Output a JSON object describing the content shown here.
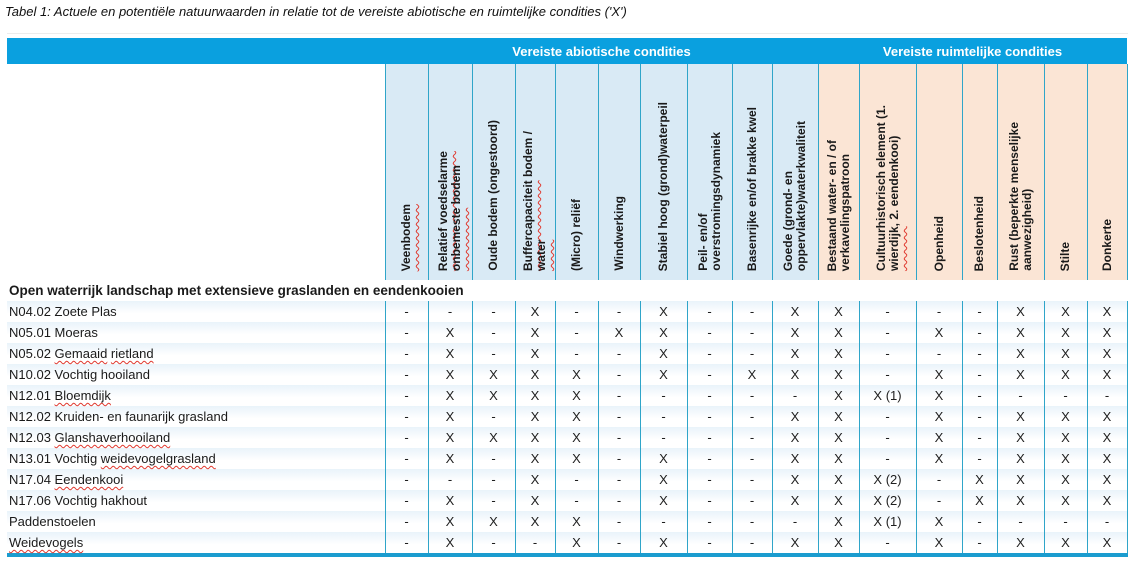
{
  "title": "Tabel 1: Actuele en potentiële natuurwaarden in relatie tot de vereiste abiotische en ruimtelijke condities ('X')",
  "colors": {
    "band_blue": "#0aa0df",
    "header_light_blue": "#d9eaf5",
    "header_peach": "#fbe5d5",
    "divider_teal": "#2fa5c9",
    "bottom_border": "#1b9ccf",
    "spellcheck_red": "#e0382e"
  },
  "table": {
    "groups": [
      {
        "label": "Vereiste abiotische condities",
        "columns": 10
      },
      {
        "label": "Vereiste ruimtelijke condities",
        "columns": 7
      }
    ],
    "columns": [
      {
        "label": "Veenbodem",
        "group": "abiotisch",
        "misspelled": [
          "Veenbodem"
        ]
      },
      {
        "label": "Relatief voedselarme\nonbemeste bodem",
        "group": "abiotisch",
        "misspelled": [
          "Relatief",
          "voedselarme",
          "onbemeste"
        ]
      },
      {
        "label": "Oude bodem (ongestoord)",
        "group": "abiotisch",
        "misspelled": []
      },
      {
        "label": "Buffercapaciteit bodem /\nwater",
        "group": "abiotisch",
        "misspelled": [
          "Buffercapaciteit",
          "water"
        ]
      },
      {
        "label": "(Micro) reliëf",
        "group": "abiotisch",
        "misspelled": []
      },
      {
        "label": "Windwerking",
        "group": "abiotisch",
        "misspelled": []
      },
      {
        "label": "Stabiel hoog (grond)waterpeil",
        "group": "abiotisch",
        "misspelled": []
      },
      {
        "label": "Peil- en/of\noverstromingsdynamiek",
        "group": "abiotisch",
        "misspelled": []
      },
      {
        "label": "Basenrijke en/of brakke kwel",
        "group": "abiotisch",
        "misspelled": []
      },
      {
        "label": "Goede (grond- en\noppervlakte)waterkwaliteit",
        "group": "abiotisch",
        "misspelled": []
      },
      {
        "label": "Bestaand water- en / of\nverkavelingspatroon",
        "group": "ruimtelijk",
        "misspelled": []
      },
      {
        "label": "Cultuurhistorisch element (1.\nwierdijk, 2. eendenkooi)",
        "group": "ruimtelijk",
        "misspelled": [
          "wierdijk"
        ]
      },
      {
        "label": "Openheid",
        "group": "ruimtelijk",
        "misspelled": []
      },
      {
        "label": "Beslotenheid",
        "group": "ruimtelijk",
        "misspelled": []
      },
      {
        "label": "Rust (beperkte menselijke\naanwezigheid)",
        "group": "ruimtelijk",
        "misspelled": []
      },
      {
        "label": "Stilte",
        "group": "ruimtelijk",
        "misspelled": []
      },
      {
        "label": "Donkerte",
        "group": "ruimtelijk",
        "misspelled": []
      }
    ],
    "section_header": "Open waterrijk landschap met extensieve graslanden en eendenkooien",
    "rows": [
      {
        "label": "N04.02 Zoete Plas",
        "misspelled": [],
        "values": [
          "-",
          "-",
          "-",
          "X",
          "-",
          "-",
          "X",
          "-",
          "-",
          "X",
          "X",
          "-",
          "-",
          "-",
          "X",
          "X",
          "X"
        ]
      },
      {
        "label": "N05.01 Moeras",
        "misspelled": [],
        "values": [
          "-",
          "X",
          "-",
          "X",
          "-",
          "X",
          "X",
          "-",
          "-",
          "X",
          "X",
          "-",
          "X",
          "-",
          "X",
          "X",
          "X"
        ]
      },
      {
        "label": "N05.02 Gemaaid rietland",
        "misspelled": [
          "Gemaaid",
          "rietland"
        ],
        "values": [
          "-",
          "X",
          "-",
          "X",
          "-",
          "-",
          "X",
          "-",
          "-",
          "X",
          "X",
          "-",
          "-",
          "-",
          "X",
          "X",
          "X"
        ]
      },
      {
        "label": "N10.02 Vochtig hooiland",
        "misspelled": [],
        "values": [
          "-",
          "X",
          "X",
          "X",
          "X",
          "-",
          "X",
          "-",
          "X",
          "X",
          "X",
          "-",
          "X",
          "-",
          "X",
          "X",
          "X"
        ]
      },
      {
        "label": "N12.01 Bloemdijk",
        "misspelled": [
          "Bloemdijk"
        ],
        "values": [
          "-",
          "X",
          "X",
          "X",
          "X",
          "-",
          "-",
          "-",
          "-",
          "-",
          "X",
          "X (1)",
          "X",
          "-",
          "-",
          "-",
          "-"
        ]
      },
      {
        "label": "N12.02 Kruiden- en faunarijk grasland",
        "misspelled": [],
        "values": [
          "-",
          "X",
          "-",
          "X",
          "X",
          "-",
          "-",
          "-",
          "-",
          "X",
          "X",
          "-",
          "X",
          "-",
          "X",
          "X",
          "X"
        ]
      },
      {
        "label": "N12.03 Glanshaverhooiland",
        "misspelled": [
          "Glanshaverhooiland"
        ],
        "values": [
          "-",
          "X",
          "X",
          "X",
          "X",
          "-",
          "-",
          "-",
          "-",
          "X",
          "X",
          "-",
          "X",
          "-",
          "X",
          "X",
          "X"
        ]
      },
      {
        "label": "N13.01 Vochtig weidevogelgrasland",
        "misspelled": [
          "weidevogelgrasland"
        ],
        "values": [
          "-",
          "X",
          "-",
          "X",
          "X",
          "-",
          "X",
          "-",
          "-",
          "X",
          "X",
          "-",
          "X",
          "-",
          "X",
          "X",
          "X"
        ]
      },
      {
        "label": "N17.04 Eendenkooi",
        "misspelled": [
          "Eendenkooi"
        ],
        "values": [
          "-",
          "-",
          "-",
          "X",
          "-",
          "-",
          "X",
          "-",
          "-",
          "X",
          "X",
          "X (2)",
          "-",
          "X",
          "X",
          "X",
          "X"
        ]
      },
      {
        "label": "N17.06 Vochtig hakhout",
        "misspelled": [],
        "values": [
          "-",
          "X",
          "-",
          "X",
          "-",
          "-",
          "X",
          "-",
          "-",
          "X",
          "X",
          "X (2)",
          "-",
          "X",
          "X",
          "X",
          "X"
        ]
      },
      {
        "label": "Paddenstoelen",
        "misspelled": [],
        "values": [
          "-",
          "X",
          "X",
          "X",
          "X",
          "-",
          "-",
          "-",
          "-",
          "-",
          "X",
          "X (1)",
          "X",
          "-",
          "-",
          "-",
          "-"
        ]
      },
      {
        "label": "Weidevogels",
        "misspelled": [
          "Weidevogels"
        ],
        "values": [
          "-",
          "X",
          "-",
          "-",
          "X",
          "-",
          "X",
          "-",
          "-",
          "X",
          "X",
          "-",
          "X",
          "-",
          "X",
          "X",
          "X"
        ]
      }
    ]
  }
}
